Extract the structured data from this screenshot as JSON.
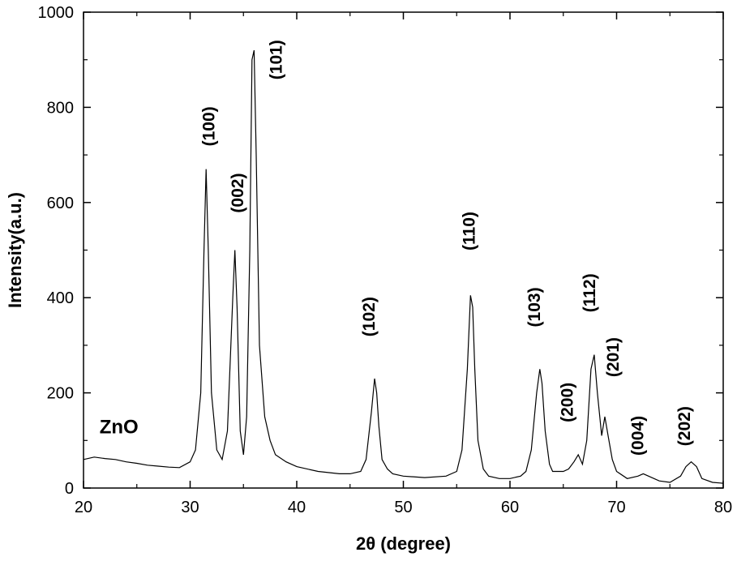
{
  "chart_data": {
    "type": "line",
    "title": "",
    "xlabel": "2θ (degree)",
    "ylabel": "Intensity(a.u.)",
    "xlim": [
      20,
      80
    ],
    "ylim": [
      0,
      1000
    ],
    "x_ticks": [
      20,
      30,
      40,
      50,
      60,
      70,
      80
    ],
    "y_ticks": [
      0,
      200,
      400,
      600,
      800,
      1000
    ],
    "grid": false,
    "legend": "none",
    "series": [
      {
        "color": "#000000",
        "x": [
          20,
          21,
          22,
          23,
          24,
          25,
          26,
          27,
          28,
          29,
          30,
          30.5,
          31.0,
          31.3,
          31.5,
          31.7,
          32.0,
          32.5,
          33.0,
          33.5,
          34.0,
          34.2,
          34.4,
          34.7,
          35.0,
          35.3,
          35.6,
          35.8,
          36.0,
          36.2,
          36.5,
          37.0,
          37.5,
          38.0,
          39,
          40,
          42,
          44,
          45,
          46,
          46.5,
          47.0,
          47.3,
          47.5,
          47.7,
          48.0,
          48.5,
          49,
          50,
          52,
          54,
          55,
          55.5,
          56.0,
          56.3,
          56.5,
          56.7,
          57.0,
          57.5,
          58,
          59,
          60,
          61,
          61.5,
          62.0,
          62.5,
          62.8,
          63.0,
          63.3,
          63.7,
          64,
          65,
          65.5,
          66.0,
          66.4,
          66.8,
          67.2,
          67.6,
          67.9,
          68.2,
          68.6,
          68.9,
          69.2,
          69.6,
          70,
          71,
          72.0,
          72.5,
          73.0,
          74,
          75,
          76,
          76.5,
          77.0,
          77.5,
          78,
          79,
          80
        ],
        "y": [
          60,
          65,
          62,
          60,
          55,
          52,
          48,
          46,
          44,
          43,
          55,
          80,
          200,
          500,
          670,
          500,
          200,
          80,
          60,
          120,
          400,
          500,
          380,
          120,
          70,
          150,
          500,
          900,
          920,
          700,
          300,
          150,
          100,
          70,
          55,
          45,
          35,
          30,
          30,
          35,
          60,
          160,
          230,
          200,
          130,
          60,
          40,
          30,
          25,
          22,
          25,
          35,
          80,
          250,
          405,
          380,
          250,
          100,
          40,
          25,
          20,
          20,
          25,
          35,
          80,
          200,
          250,
          220,
          120,
          50,
          35,
          35,
          40,
          55,
          70,
          50,
          100,
          250,
          280,
          200,
          110,
          150,
          110,
          60,
          35,
          20,
          25,
          30,
          25,
          15,
          12,
          25,
          45,
          55,
          45,
          20,
          12,
          10
        ]
      }
    ],
    "peak_labels": [
      {
        "text": "(100)",
        "x": 32.3,
        "y": 760
      },
      {
        "text": "(002)",
        "x": 35.0,
        "y": 620
      },
      {
        "text": "(101)",
        "x": 38.6,
        "y": 900
      },
      {
        "text": "(102)",
        "x": 47.3,
        "y": 360
      },
      {
        "text": "(110)",
        "x": 56.7,
        "y": 540
      },
      {
        "text": "(103)",
        "x": 62.8,
        "y": 380
      },
      {
        "text": "(200)",
        "x": 65.9,
        "y": 180
      },
      {
        "text": "(112)",
        "x": 68.0,
        "y": 410
      },
      {
        "text": "(201)",
        "x": 70.2,
        "y": 275
      },
      {
        "text": "(004)",
        "x": 72.5,
        "y": 110
      },
      {
        "text": "(202)",
        "x": 76.9,
        "y": 130
      }
    ],
    "annotations": [
      {
        "text": "ZnO",
        "x": 21.5,
        "y": 115
      }
    ]
  }
}
